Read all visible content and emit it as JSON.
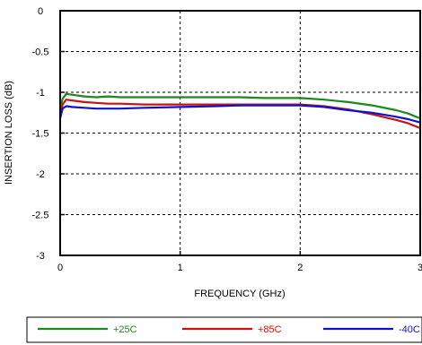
{
  "chart_data": {
    "type": "line",
    "title": "",
    "xlabel": "FREQUENCY (GHz)",
    "ylabel": "INSERTION LOSS (dB)",
    "xlim": [
      0,
      3
    ],
    "ylim": [
      -3,
      0
    ],
    "xticks": [
      0,
      1,
      2,
      3
    ],
    "yticks": [
      0,
      -0.5,
      -1,
      -1.5,
      -2,
      -2.5,
      -3
    ],
    "xtick_labels": [
      "0",
      "1",
      "2",
      "3"
    ],
    "ytick_labels": [
      "0",
      "-0.5",
      "-1",
      "-1.5",
      "-2",
      "-2.5",
      "-3"
    ],
    "grid": true,
    "legend_position": "bottom",
    "series": [
      {
        "name": "+25C",
        "color": "#1a8a1a",
        "x": [
          0,
          0.02,
          0.05,
          0.1,
          0.2,
          0.3,
          0.4,
          0.5,
          0.7,
          1.0,
          1.3,
          1.5,
          1.7,
          2.0,
          2.2,
          2.4,
          2.6,
          2.8,
          2.9,
          3.0
        ],
        "y": [
          -1.2,
          -1.08,
          -1.02,
          -1.03,
          -1.05,
          -1.06,
          -1.05,
          -1.06,
          -1.06,
          -1.06,
          -1.06,
          -1.06,
          -1.07,
          -1.07,
          -1.09,
          -1.12,
          -1.16,
          -1.22,
          -1.26,
          -1.32
        ]
      },
      {
        "name": "+85C",
        "color": "#cc1111",
        "x": [
          0,
          0.02,
          0.05,
          0.1,
          0.2,
          0.3,
          0.4,
          0.5,
          0.7,
          1.0,
          1.3,
          1.5,
          1.7,
          2.0,
          2.2,
          2.4,
          2.6,
          2.8,
          2.9,
          3.0
        ],
        "y": [
          -1.28,
          -1.15,
          -1.09,
          -1.1,
          -1.12,
          -1.13,
          -1.14,
          -1.14,
          -1.15,
          -1.15,
          -1.15,
          -1.15,
          -1.15,
          -1.15,
          -1.17,
          -1.21,
          -1.27,
          -1.34,
          -1.38,
          -1.44
        ]
      },
      {
        "name": "-40C",
        "color": "#1111cc",
        "x": [
          0,
          0.02,
          0.05,
          0.1,
          0.2,
          0.3,
          0.4,
          0.5,
          0.7,
          1.0,
          1.3,
          1.5,
          1.7,
          2.0,
          2.2,
          2.4,
          2.6,
          2.8,
          2.9,
          3.0
        ],
        "y": [
          -1.32,
          -1.2,
          -1.17,
          -1.18,
          -1.19,
          -1.2,
          -1.2,
          -1.2,
          -1.19,
          -1.18,
          -1.17,
          -1.16,
          -1.16,
          -1.16,
          -1.18,
          -1.22,
          -1.25,
          -1.3,
          -1.33,
          -1.37
        ]
      }
    ]
  }
}
